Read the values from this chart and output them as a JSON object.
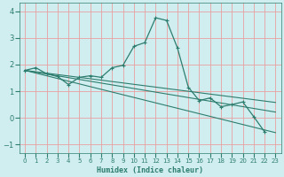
{
  "xlabel": "Humidex (Indice chaleur)",
  "ylabel": "",
  "xlim": [
    -0.5,
    23.5
  ],
  "ylim": [
    -1.3,
    4.3
  ],
  "yticks": [
    -1,
    0,
    1,
    2,
    3,
    4
  ],
  "xticks": [
    0,
    1,
    2,
    3,
    4,
    5,
    6,
    7,
    8,
    9,
    10,
    11,
    12,
    13,
    14,
    15,
    16,
    17,
    18,
    19,
    20,
    21,
    22,
    23
  ],
  "bg_color": "#d0eef0",
  "grid_color": "#e8a0a0",
  "line_color": "#2d7d6e",
  "line1_x": [
    0,
    1,
    2,
    3,
    4,
    5,
    6,
    7,
    8,
    9,
    10,
    11,
    12,
    13,
    14,
    15,
    16,
    17,
    18,
    19,
    20,
    21,
    22
  ],
  "line1_y": [
    1.78,
    1.88,
    1.65,
    1.55,
    1.25,
    1.52,
    1.58,
    1.52,
    1.88,
    1.97,
    2.68,
    2.82,
    3.75,
    3.65,
    2.62,
    1.15,
    0.65,
    0.75,
    0.42,
    0.5,
    0.6,
    0.05,
    -0.52
  ],
  "line2_x": [
    0,
    23
  ],
  "line2_y": [
    1.78,
    0.58
  ],
  "line3_x": [
    0,
    23
  ],
  "line3_y": [
    1.78,
    0.22
  ],
  "line4_x": [
    0,
    23
  ],
  "line4_y": [
    1.78,
    -0.55
  ]
}
